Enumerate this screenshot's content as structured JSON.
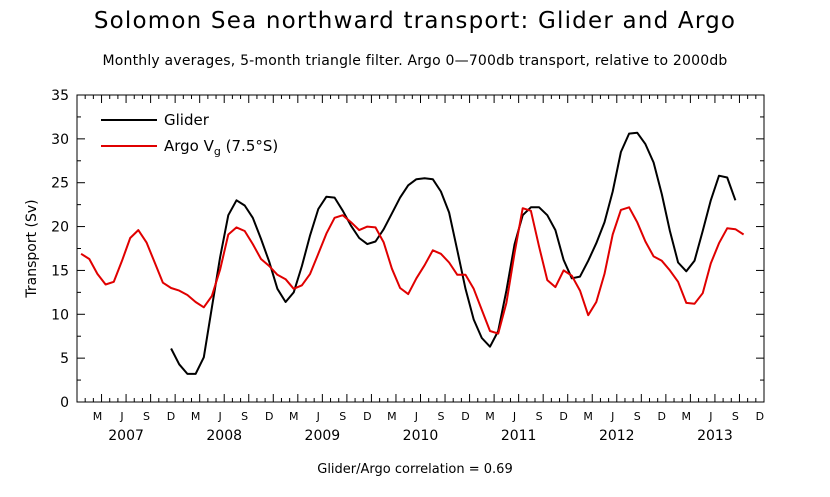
{
  "title": "Solomon Sea northward transport: Glider and Argo",
  "subtitle": "Monthly averages, 5-month triangle filter. Argo 0—700db transport, relative to 2000db",
  "footer": "Glider/Argo correlation = 0.69",
  "chart_data": {
    "type": "line",
    "title": "Solomon Sea northward transport: Glider and Argo",
    "subtitle": "Monthly averages, 5-month triangle filter. Argo 0—700db transport, relative to 2000db",
    "ylabel": "Transport (Sv)",
    "xlabel": "",
    "ylim": [
      0,
      35
    ],
    "y_ticks": [
      0,
      5,
      10,
      15,
      20,
      25,
      30,
      35
    ],
    "y_tick_labels": [
      "0",
      "5",
      "10",
      "15",
      "20",
      "25",
      "30",
      "35"
    ],
    "x_range": [
      "2007-01",
      "2014-01"
    ],
    "month_labels": [
      "M",
      "J",
      "S",
      "D"
    ],
    "year_labels": [
      "2007",
      "2008",
      "2009",
      "2010",
      "2011",
      "2012",
      "2013"
    ],
    "grid": false,
    "legend": "top-left",
    "series": [
      {
        "name": "Glider",
        "color": "#000000",
        "start": "2007-12",
        "values": [
          6.1,
          4.3,
          3.2,
          3.2,
          5.1,
          10.8,
          16.5,
          21.3,
          23.0,
          22.4,
          21.0,
          18.6,
          16.0,
          12.9,
          11.4,
          12.5,
          15.5,
          19.0,
          22.0,
          23.4,
          23.3,
          21.8,
          20.1,
          18.7,
          18.0,
          18.3,
          19.7,
          21.5,
          23.3,
          24.7,
          25.4,
          25.5,
          25.4,
          24.0,
          21.6,
          17.3,
          12.9,
          9.4,
          7.3,
          6.3,
          8.1,
          12.7,
          18.0,
          21.3,
          22.2,
          22.2,
          21.3,
          19.6,
          16.2,
          14.1,
          14.3,
          16.1,
          18.1,
          20.5,
          24.0,
          28.5,
          30.6,
          30.7,
          29.4,
          27.3,
          23.7,
          19.5,
          15.9,
          14.9,
          16.1,
          19.5,
          23.0,
          25.8,
          25.6,
          23.0
        ]
      },
      {
        "name": "Argo V_g (7.5°S)",
        "color": "#e00000",
        "start": "2007-01",
        "values": [
          16.9,
          16.3,
          14.6,
          13.4,
          13.7,
          16.1,
          18.7,
          19.6,
          18.2,
          15.9,
          13.6,
          13.0,
          12.7,
          12.2,
          11.4,
          10.8,
          12.1,
          15.1,
          19.1,
          19.9,
          19.5,
          18.0,
          16.3,
          15.5,
          14.5,
          14.0,
          12.9,
          13.3,
          14.6,
          16.9,
          19.2,
          21.0,
          21.3,
          20.5,
          19.6,
          20.0,
          19.9,
          18.2,
          15.2,
          13.0,
          12.3,
          14.1,
          15.6,
          17.3,
          16.9,
          15.9,
          14.5,
          14.5,
          12.9,
          10.5,
          8.1,
          7.8,
          11.3,
          17.0,
          22.1,
          21.8,
          17.7,
          13.9,
          13.1,
          15.0,
          14.4,
          12.7,
          9.9,
          11.4,
          14.6,
          19.1,
          21.9,
          22.2,
          20.5,
          18.3,
          16.6,
          16.1,
          15.0,
          13.7,
          11.3,
          11.2,
          12.4,
          15.8,
          18.1,
          19.8,
          19.7,
          19.1
        ]
      }
    ]
  }
}
